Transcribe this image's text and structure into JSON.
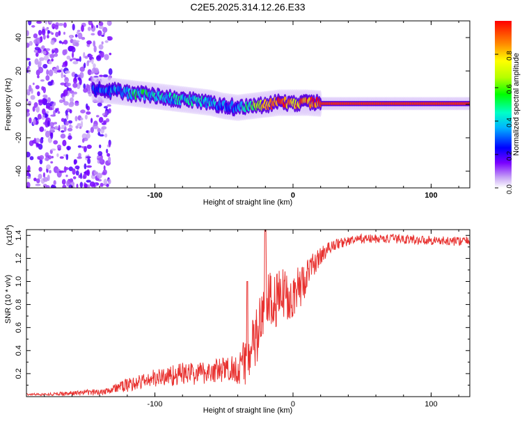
{
  "title": "C2E5.2025.314.12.26.E33",
  "colors": {
    "axis": "#000000",
    "snr_line": "#e8312f",
    "background": "#ffffff"
  },
  "chart_data": [
    {
      "type": "heatmap",
      "name": "spectrogram",
      "xlabel": "Height of straight line (km)",
      "ylabel": "Frequency (Hz)",
      "xlim": [
        -193,
        128
      ],
      "ylim": [
        -50,
        50
      ],
      "xticks": [
        -100,
        0,
        100
      ],
      "xtick_labels": [
        "-100",
        "0",
        "100"
      ],
      "yticks": [
        -40,
        -20,
        0,
        20,
        40
      ],
      "ytick_labels": [
        "-40",
        "-20",
        "0",
        "20",
        "40"
      ],
      "noise_region_x": [
        -193,
        -132
      ],
      "ridge": {
        "x": [
          -145,
          -130,
          -120,
          -110,
          -100,
          -90,
          -80,
          -70,
          -60,
          -50,
          -40,
          -30,
          -20,
          -10,
          0,
          10,
          20,
          40,
          60,
          80,
          100,
          128
        ],
        "freq": [
          9,
          8,
          7,
          6,
          5,
          4,
          3,
          2,
          1,
          -1,
          -2,
          -1,
          0,
          1,
          1,
          1,
          0.5,
          0.5,
          0.5,
          0.5,
          0.5,
          0.5
        ],
        "amplitude": [
          0.2,
          0.35,
          0.45,
          0.45,
          0.45,
          0.4,
          0.4,
          0.4,
          0.35,
          0.3,
          0.3,
          0.55,
          0.85,
          0.9,
          0.8,
          0.9,
          0.95,
          0.95,
          0.95,
          0.95,
          0.95,
          0.95
        ]
      },
      "colorbar": {
        "label": "Normalized spectral amplitude",
        "range": [
          0,
          1
        ],
        "ticks": [
          0,
          0.2,
          0.4,
          0.6,
          0.8
        ],
        "tick_labels": [
          "0.0",
          "0.2",
          "0.4",
          "0.6",
          "0.8"
        ]
      }
    },
    {
      "type": "line",
      "name": "snr",
      "xlabel": "Height of straight line (km)",
      "ylabel": "SNR (10 * v/v)",
      "scale_label": "(x10",
      "scale_exponent": "4",
      "scale_close": ")",
      "xlim": [
        -193,
        128
      ],
      "ylim": [
        0,
        1.45
      ],
      "xticks": [
        -100,
        0,
        100
      ],
      "xtick_labels": [
        "-100",
        "0",
        "100"
      ],
      "yticks": [
        0.2,
        0.4,
        0.6,
        0.8,
        1.0,
        1.2,
        1.4
      ],
      "ytick_labels": [
        "0.2",
        "0.4",
        "0.6",
        "0.8",
        "1.0",
        "1.2",
        "1.4"
      ],
      "series": [
        {
          "name": "SNR",
          "x": [
            -193,
            -180,
            -160,
            -140,
            -130,
            -120,
            -110,
            -100,
            -90,
            -80,
            -70,
            -60,
            -50,
            -40,
            -35,
            -30,
            -25,
            -22,
            -20,
            -15,
            -10,
            -5,
            0,
            5,
            10,
            15,
            20,
            25,
            30,
            40,
            50,
            60,
            70,
            80,
            90,
            100,
            110,
            120,
            128
          ],
          "y": [
            0.02,
            0.02,
            0.03,
            0.04,
            0.07,
            0.1,
            0.13,
            0.16,
            0.18,
            0.2,
            0.2,
            0.22,
            0.23,
            0.25,
            0.3,
            0.4,
            0.55,
            0.7,
            0.85,
            0.8,
            0.85,
            0.9,
            0.88,
            0.95,
            1.05,
            1.15,
            1.22,
            1.28,
            1.32,
            1.35,
            1.37,
            1.37,
            1.37,
            1.37,
            1.36,
            1.36,
            1.35,
            1.35,
            1.35
          ],
          "noise": [
            0.01,
            0.01,
            0.02,
            0.03,
            0.04,
            0.06,
            0.07,
            0.08,
            0.09,
            0.1,
            0.1,
            0.1,
            0.12,
            0.14,
            0.2,
            0.25,
            0.3,
            0.35,
            0.3,
            0.25,
            0.25,
            0.25,
            0.2,
            0.2,
            0.15,
            0.1,
            0.08,
            0.06,
            0.05,
            0.04,
            0.04,
            0.04,
            0.04,
            0.04,
            0.04,
            0.04,
            0.04,
            0.04,
            0.04
          ]
        }
      ]
    }
  ]
}
